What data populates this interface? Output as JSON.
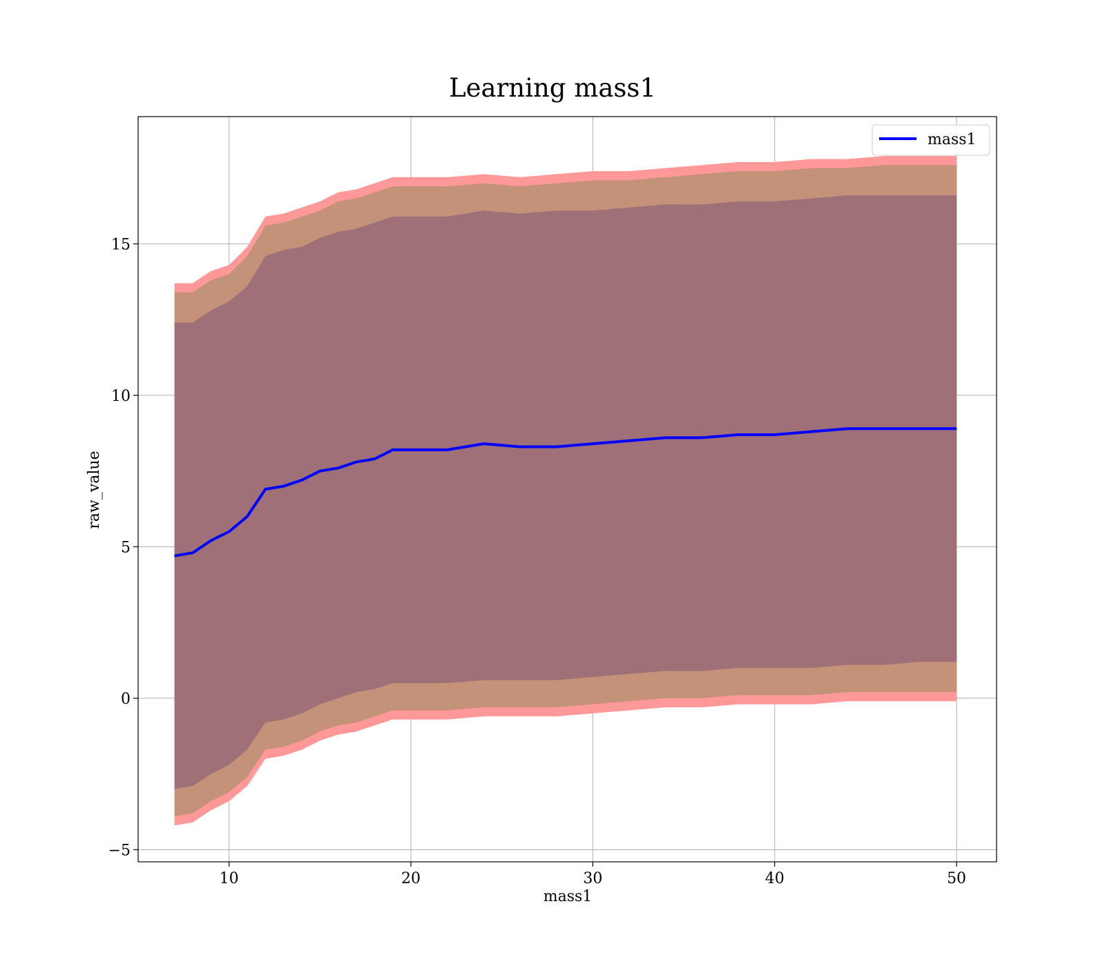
{
  "chart_data": {
    "type": "line",
    "title": "Learning mass1",
    "xlabel": "mass1",
    "ylabel": "raw_value",
    "xlim": [
      5,
      52.2
    ],
    "ylim": [
      -5.4,
      19.2
    ],
    "xticks": [
      10,
      20,
      30,
      40,
      50
    ],
    "xtick_labels": [
      "10",
      "20",
      "30",
      "40",
      "50"
    ],
    "yticks": [
      -5,
      0,
      5,
      10,
      15
    ],
    "ytick_labels": [
      "−5",
      "0",
      "5",
      "10",
      "15"
    ],
    "grid": true,
    "legend": {
      "position": "top-right",
      "entries": [
        "mass1"
      ]
    },
    "colors": {
      "line": "#0000ff",
      "outer_band": "#ff9999",
      "middle_band": "#c49278",
      "inner_band": "#a07078",
      "grid": "#b0b0b0"
    },
    "x": [
      7.0,
      8.0,
      9.0,
      10.0,
      11.0,
      12.0,
      13.0,
      14.0,
      15.0,
      16.0,
      17.0,
      18.0,
      19.0,
      20.0,
      22.0,
      24.0,
      26.0,
      28.0,
      30.0,
      32.0,
      34.0,
      36.0,
      38.0,
      40.0,
      42.0,
      44.0,
      46.0,
      48.0,
      50.0
    ],
    "series": [
      {
        "name": "mass1",
        "role": "mean",
        "values": [
          4.7,
          4.8,
          5.2,
          5.5,
          6.0,
          6.9,
          7.0,
          7.2,
          7.5,
          7.6,
          7.8,
          7.9,
          8.2,
          8.2,
          8.2,
          8.4,
          8.3,
          8.3,
          8.4,
          8.5,
          8.6,
          8.6,
          8.7,
          8.7,
          8.8,
          8.9,
          8.9,
          8.9,
          8.9
        ]
      },
      {
        "role": "outer_band",
        "upper": [
          13.7,
          13.7,
          14.1,
          14.3,
          14.9,
          15.9,
          16.0,
          16.2,
          16.4,
          16.7,
          16.8,
          17.0,
          17.2,
          17.2,
          17.2,
          17.3,
          17.2,
          17.3,
          17.4,
          17.4,
          17.5,
          17.6,
          17.7,
          17.7,
          17.8,
          17.8,
          17.9,
          17.9,
          17.9
        ],
        "lower": [
          -4.2,
          -4.1,
          -3.7,
          -3.4,
          -2.9,
          -2.0,
          -1.9,
          -1.7,
          -1.4,
          -1.2,
          -1.1,
          -0.9,
          -0.7,
          -0.7,
          -0.7,
          -0.6,
          -0.6,
          -0.6,
          -0.5,
          -0.4,
          -0.3,
          -0.3,
          -0.2,
          -0.2,
          -0.2,
          -0.1,
          -0.1,
          -0.1,
          -0.1
        ]
      },
      {
        "role": "middle_band",
        "upper": [
          13.4,
          13.4,
          13.8,
          14.0,
          14.6,
          15.6,
          15.7,
          15.9,
          16.1,
          16.4,
          16.5,
          16.7,
          16.9,
          16.9,
          16.9,
          17.0,
          16.9,
          17.0,
          17.1,
          17.1,
          17.2,
          17.3,
          17.4,
          17.4,
          17.5,
          17.5,
          17.6,
          17.6,
          17.6
        ],
        "lower": [
          -3.9,
          -3.8,
          -3.4,
          -3.1,
          -2.6,
          -1.7,
          -1.6,
          -1.4,
          -1.1,
          -0.9,
          -0.8,
          -0.6,
          -0.4,
          -0.4,
          -0.4,
          -0.3,
          -0.3,
          -0.3,
          -0.2,
          -0.1,
          0.0,
          0.0,
          0.1,
          0.1,
          0.1,
          0.2,
          0.2,
          0.2,
          0.2
        ]
      },
      {
        "role": "inner_band",
        "upper": [
          12.4,
          12.4,
          12.8,
          13.1,
          13.6,
          14.6,
          14.8,
          14.9,
          15.2,
          15.4,
          15.5,
          15.7,
          15.9,
          15.9,
          15.9,
          16.1,
          16.0,
          16.1,
          16.1,
          16.2,
          16.3,
          16.3,
          16.4,
          16.4,
          16.5,
          16.6,
          16.6,
          16.6,
          16.6
        ],
        "lower": [
          -3.0,
          -2.9,
          -2.5,
          -2.2,
          -1.7,
          -0.8,
          -0.7,
          -0.5,
          -0.2,
          0.0,
          0.2,
          0.3,
          0.5,
          0.5,
          0.5,
          0.6,
          0.6,
          0.6,
          0.7,
          0.8,
          0.9,
          0.9,
          1.0,
          1.0,
          1.0,
          1.1,
          1.1,
          1.2,
          1.2
        ]
      }
    ]
  }
}
